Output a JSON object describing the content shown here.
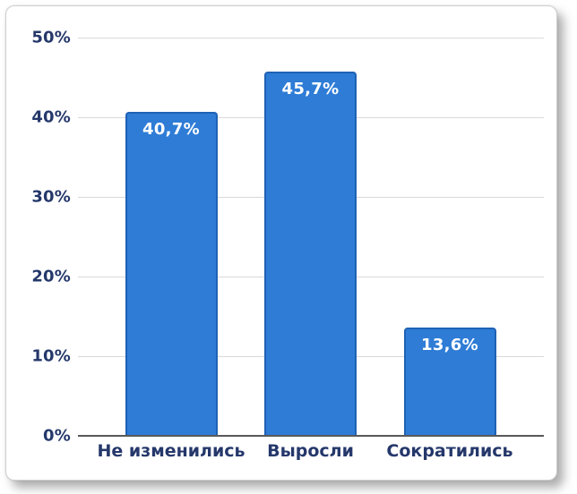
{
  "chart_data": {
    "type": "bar",
    "categories": [
      "Не изменились",
      "Выросли",
      "Сократились"
    ],
    "values": [
      40.7,
      45.7,
      13.6
    ],
    "value_labels": [
      "40,7%",
      "45,7%",
      "13,6%"
    ],
    "title": "",
    "xlabel": "",
    "ylabel": "",
    "ylim": [
      0,
      50
    ],
    "yticks": [
      0,
      10,
      20,
      30,
      40,
      50
    ],
    "ytick_labels": [
      "0%",
      "10%",
      "20%",
      "30%",
      "40%",
      "50%"
    ],
    "grid": true,
    "legend": false,
    "colors": {
      "bar_fill": "#2E7CD6",
      "bar_border": "#1E62B5",
      "value_label_text": "#FFFFFF",
      "axis_text": "#25386B",
      "gridline": "#D9D9D9",
      "axis_line": "#595959",
      "card_background": "#FFFFFF"
    }
  }
}
